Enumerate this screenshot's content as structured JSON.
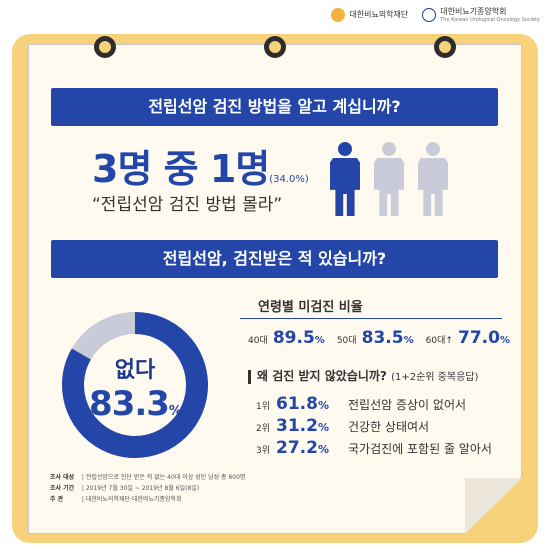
{
  "logos": {
    "org1": "대한비뇨의학재단",
    "org2": "대한비뇨기종양학회",
    "org2_en": "The Korean Urological Oncology Society"
  },
  "banner1": "전립선암 검진 방법을 알고 계십니까?",
  "stat": {
    "big": "3명 중 1명",
    "pct": "(34.0%)",
    "quote": "“전립선암 검진 방법 몰라”"
  },
  "people_icons": {
    "dark": 1,
    "light": 2
  },
  "banner2": "전립선암, 검진받은 적 있습니까?",
  "donut": {
    "label": "없다",
    "value": "83.3",
    "unit": "%",
    "fraction": 0.833,
    "color_main": "#2346a8",
    "color_rest": "#c9cbd8"
  },
  "age": {
    "title": "연령별 미검진 비율",
    "items": [
      {
        "label": "40대",
        "value": "89.5",
        "unit": "%"
      },
      {
        "label": "50대",
        "value": "83.5",
        "unit": "%"
      },
      {
        "label": "60대↑",
        "value": "77.0",
        "unit": "%"
      }
    ]
  },
  "why": {
    "title": "왜 검진 받지 않았습니까?",
    "note": "(1+2순위 중복응답)"
  },
  "reasons": [
    {
      "rank": "1위",
      "value": "61.8",
      "unit": "%",
      "text": "전립선암 증상이 없어서"
    },
    {
      "rank": "2위",
      "value": "31.2",
      "unit": "%",
      "text": "건강한 상태여서"
    },
    {
      "rank": "3위",
      "value": "27.2",
      "unit": "%",
      "text": "국가검진에 포함된 줄 알아서"
    }
  ],
  "notes": [
    {
      "k": "조사 대상",
      "v": "전립선암으로 진단 받은 적 없는 40대 이상 성인 남성 총 600명"
    },
    {
      "k": "조사 기간",
      "v": "2019년 7월 30일 ~ 2019년 8월 6일(8일)"
    },
    {
      "k": "주  관",
      "v": "대한비뇨의학재단·대한비뇨기종양학회"
    }
  ]
}
